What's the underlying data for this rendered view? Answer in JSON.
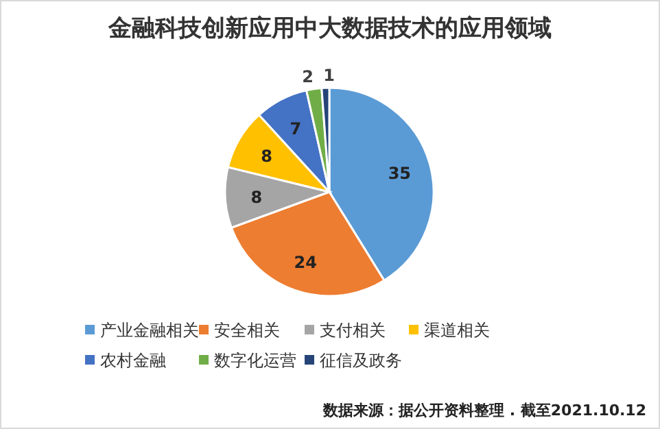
{
  "chart_data": {
    "type": "pie",
    "title": "金融科技创新应用中大数据技术的应用领域",
    "categories": [
      "产业金融相关",
      "安全相关",
      "支付相关",
      "渠道相关",
      "农村金融",
      "数字化运营",
      "征信及政务"
    ],
    "values": [
      35,
      24,
      8,
      8,
      7,
      2,
      1
    ],
    "colors": [
      "#5b9bd5",
      "#ed7d31",
      "#a5a5a5",
      "#ffc000",
      "#4472c4",
      "#70ad47",
      "#264478"
    ],
    "data_labels": true,
    "legend": "bottom",
    "annotations": [
      "数据来源：据公开资料整理 . 截至2021.10.12"
    ]
  }
}
